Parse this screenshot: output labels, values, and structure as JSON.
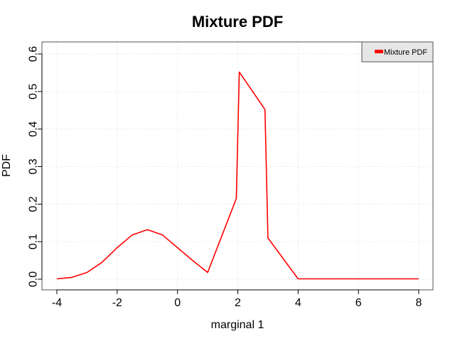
{
  "chart_data": {
    "type": "line",
    "title": "Mixture PDF",
    "xlabel": "marginal 1",
    "ylabel": "PDF",
    "xlim": [
      -4,
      8
    ],
    "ylim": [
      0,
      0.6
    ],
    "x_ticks": [
      "-4",
      "-2",
      "0",
      "2",
      "4",
      "6",
      "8"
    ],
    "y_ticks": [
      "0.0",
      "0.1",
      "0.2",
      "0.3",
      "0.4",
      "0.5",
      "0.6"
    ],
    "grid": true,
    "legend_position": "top-right",
    "series": [
      {
        "name": "Mixture PDF",
        "color": "#ff0000",
        "x": [
          -4.0,
          -3.5,
          -3.0,
          -2.5,
          -2.0,
          -1.5,
          -1.0,
          -0.5,
          0.0,
          0.5,
          1.0,
          1.95,
          2.05,
          2.9,
          3.0,
          4.0,
          5.0,
          6.0,
          7.0,
          8.0
        ],
        "y": [
          0.001,
          0.005,
          0.018,
          0.045,
          0.084,
          0.118,
          0.132,
          0.118,
          0.084,
          0.05,
          0.018,
          0.215,
          0.552,
          0.452,
          0.11,
          0.001,
          0.001,
          0.001,
          0.001,
          0.001
        ]
      }
    ]
  }
}
